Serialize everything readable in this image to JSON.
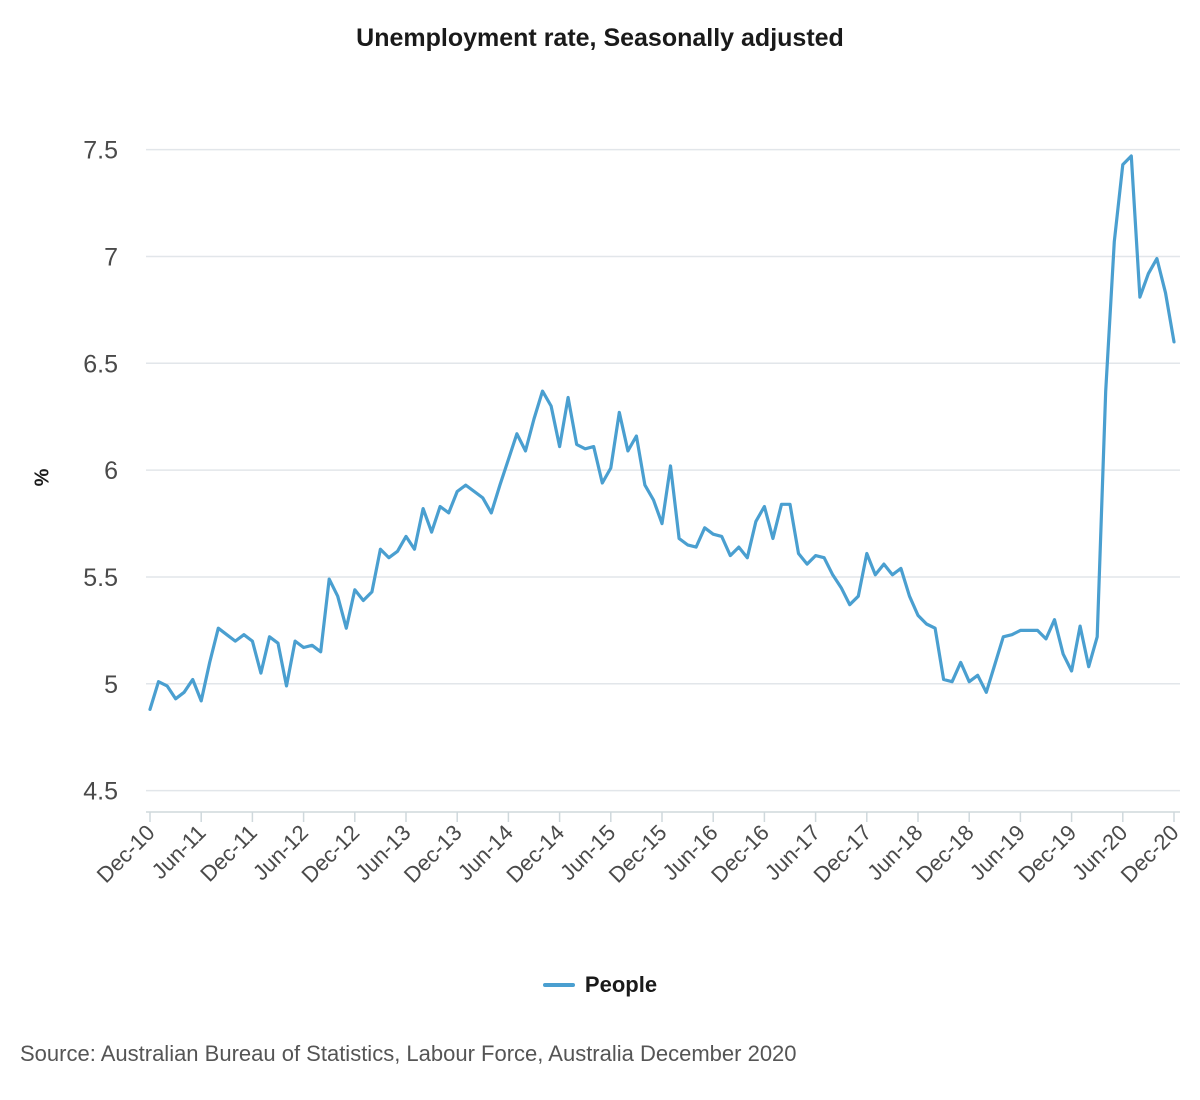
{
  "chart_data": {
    "type": "line",
    "title": "Unemployment rate, Seasonally adjusted",
    "ylabel": "%",
    "ylim": [
      4.4,
      7.62
    ],
    "yticks": [
      "4.5",
      "5",
      "5.5",
      "6",
      "6.5",
      "7",
      "7.5"
    ],
    "ytick_values": [
      4.5,
      5,
      5.5,
      6,
      6.5,
      7,
      7.5
    ],
    "xtick_labels": [
      "Dec-10",
      "Jun-11",
      "Dec-11",
      "Jun-12",
      "Dec-12",
      "Jun-13",
      "Dec-13",
      "Jun-14",
      "Dec-14",
      "Jun-15",
      "Dec-15",
      "Jun-16",
      "Dec-16",
      "Jun-17",
      "Dec-17",
      "Jun-18",
      "Dec-18",
      "Jun-19",
      "Dec-19",
      "Jun-20",
      "Dec-20"
    ],
    "x_start": "Dec-10",
    "x_end": "Dec-20",
    "grid": true,
    "legend_position": "bottom-center",
    "series": [
      {
        "name": "People",
        "color": "#4a9fd0",
        "values": [
          4.88,
          5.01,
          4.99,
          4.93,
          4.96,
          5.02,
          4.92,
          5.1,
          5.26,
          5.23,
          5.2,
          5.23,
          5.2,
          5.05,
          5.22,
          5.19,
          4.99,
          5.2,
          5.17,
          5.18,
          5.15,
          5.49,
          5.41,
          5.26,
          5.44,
          5.39,
          5.43,
          5.63,
          5.59,
          5.62,
          5.69,
          5.63,
          5.82,
          5.71,
          5.83,
          5.8,
          5.9,
          5.93,
          5.9,
          5.87,
          5.8,
          5.93,
          6.05,
          6.17,
          6.09,
          6.24,
          6.37,
          6.3,
          6.11,
          6.34,
          6.12,
          6.1,
          6.11,
          5.94,
          6.01,
          6.27,
          6.09,
          6.16,
          5.93,
          5.86,
          5.75,
          6.02,
          5.68,
          5.65,
          5.64,
          5.73,
          5.7,
          5.69,
          5.6,
          5.64,
          5.59,
          5.76,
          5.83,
          5.68,
          5.84,
          5.84,
          5.61,
          5.56,
          5.6,
          5.59,
          5.51,
          5.45,
          5.37,
          5.41,
          5.61,
          5.51,
          5.56,
          5.51,
          5.54,
          5.41,
          5.32,
          5.28,
          5.26,
          5.02,
          5.01,
          5.1,
          5.01,
          5.04,
          4.96,
          5.09,
          5.22,
          5.23,
          5.25,
          5.25,
          5.25,
          5.21,
          5.3,
          5.14,
          5.06,
          5.27,
          5.08,
          5.22,
          6.37,
          7.07,
          7.43,
          7.47,
          6.81,
          6.92,
          6.99,
          6.83,
          6.6
        ]
      }
    ]
  },
  "source_text": "Source: Australian Bureau of Statistics, Labour Force, Australia December 2020"
}
